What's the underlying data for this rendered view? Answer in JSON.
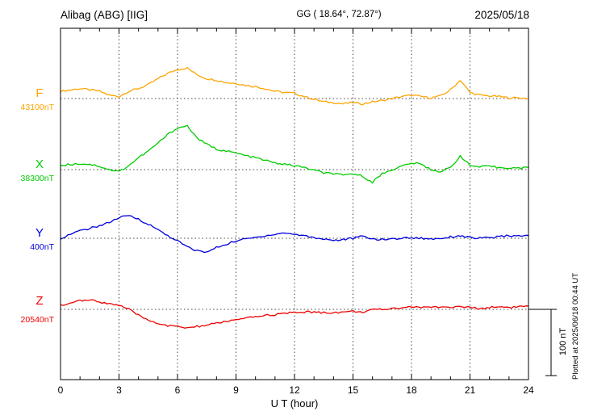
{
  "chart_data": {
    "type": "line",
    "station_title": "Alibag (ABG)  [IIG]",
    "gg_coords": "GG ( 18.64°,  72.87°)",
    "date": "2025/05/18",
    "xlabel": "U T (hour)",
    "x_range": [
      0,
      24
    ],
    "x_ticks": [
      0,
      3,
      6,
      9,
      12,
      15,
      18,
      21,
      24
    ],
    "sample_interval_hours": 0.5,
    "grid": "dotted vertical lines every 3 hours; dotted horizontal line at each component baseline",
    "scale_bar_label": "100 nT",
    "scale_bar_nT": 100,
    "plotted_at": "Plotted at 2025/06/18 00:44 UT",
    "series": [
      {
        "name": "F",
        "color": "#FFA500",
        "baseline_label": "43100nT",
        "baseline_nT": 43100,
        "offsets_nT": [
          11,
          13,
          15,
          13,
          11,
          5,
          3,
          11,
          15,
          21,
          30,
          38,
          44,
          46,
          36,
          30,
          28,
          24,
          23,
          20,
          18,
          15,
          11,
          9,
          8,
          3,
          -1,
          -5,
          -6,
          -8,
          -6,
          -8,
          -5,
          -3,
          0,
          3,
          5,
          3,
          1,
          4,
          13,
          28,
          9,
          5,
          4,
          3,
          1,
          1,
          0
        ]
      },
      {
        "name": "X",
        "color": "#00CC00",
        "baseline_label": "38300nT",
        "baseline_nT": 38300,
        "offsets_nT": [
          6,
          8,
          9,
          8,
          5,
          0,
          -3,
          6,
          18,
          28,
          40,
          53,
          63,
          66,
          48,
          38,
          31,
          28,
          25,
          21,
          18,
          14,
          10,
          8,
          6,
          3,
          -1,
          -5,
          -6,
          -9,
          -6,
          -10,
          -19,
          -6,
          0,
          5,
          10,
          8,
          0,
          -3,
          3,
          21,
          6,
          4,
          5,
          3,
          3,
          2,
          3
        ]
      },
      {
        "name": "Y",
        "color": "#0000DD",
        "baseline_label": "400nT",
        "baseline_nT": 400,
        "offsets_nT": [
          0,
          6,
          11,
          15,
          19,
          24,
          31,
          34,
          29,
          21,
          13,
          4,
          -4,
          -13,
          -19,
          -21,
          -14,
          -9,
          -4,
          -1,
          1,
          4,
          6,
          8,
          6,
          4,
          1,
          -1,
          -3,
          -2,
          0,
          3,
          -1,
          -2,
          -1,
          0,
          1,
          0,
          -1,
          0,
          2,
          4,
          1,
          0,
          1,
          2,
          4,
          3,
          4
        ]
      },
      {
        "name": "Z",
        "color": "#EE0000",
        "baseline_label": "20540nT",
        "baseline_nT": 20540,
        "offsets_nT": [
          6,
          10,
          13,
          14,
          11,
          9,
          6,
          0,
          -9,
          -16,
          -21,
          -25,
          -26,
          -28,
          -26,
          -24,
          -21,
          -18,
          -16,
          -14,
          -11,
          -9,
          -8,
          -6,
          -5,
          -4,
          -4,
          -5,
          -5,
          -4,
          -3,
          -4,
          -1,
          0,
          1,
          3,
          4,
          3,
          3,
          4,
          3,
          4,
          3,
          1,
          3,
          4,
          3,
          4,
          5
        ]
      }
    ]
  }
}
